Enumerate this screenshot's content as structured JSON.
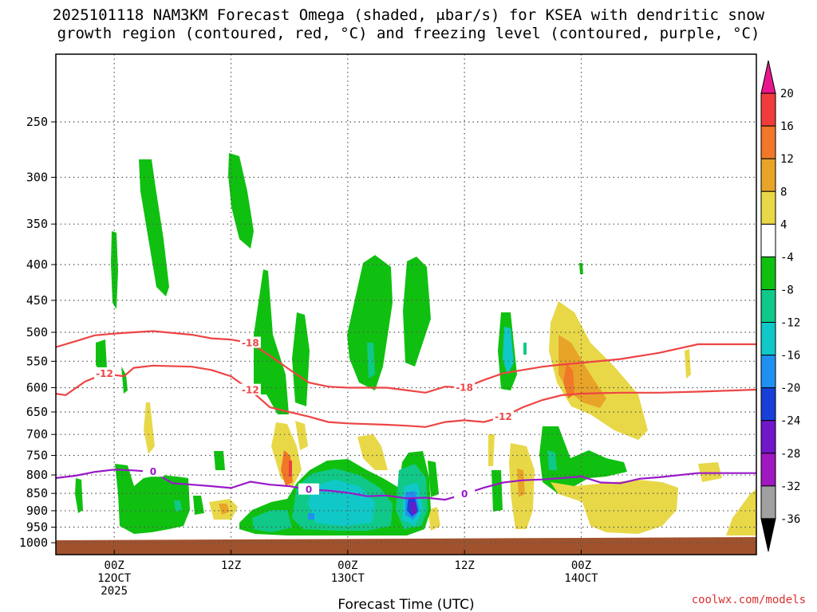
{
  "title": {
    "line1": "2025101118 NAM3KM Forecast Omega (shaded, μbar/s) for KSEA with dendritic snow",
    "line2": "growth region (contoured, red, °C) and freezing level (contoured, purple, °C)"
  },
  "credit": "coolwx.com/models",
  "chart_data": {
    "type": "time-height cross-section",
    "title": "2025101118 NAM3KM Forecast Omega (shaded, μbar/s) for KSEA with dendritic snow growth region (contoured, red, °C) and freezing level (contoured, purple, °C)",
    "xlabel": "Forecast Time (UTC)",
    "ylabel": "",
    "x_range": [
      "2025-10-11T18Z",
      "2025-10-14T18Z"
    ],
    "y_axis": {
      "units": "hPa",
      "ticks": [
        250,
        300,
        350,
        400,
        450,
        500,
        550,
        600,
        650,
        700,
        750,
        800,
        850,
        900,
        950,
        1000
      ],
      "scale": "log-pressure",
      "ylim": [
        1040,
        200
      ]
    },
    "x_ticks": [
      {
        "time": "2025-10-12T00Z",
        "label1": "00Z",
        "label2": "12OCT",
        "label3": "2025"
      },
      {
        "time": "2025-10-12T12Z",
        "label1": "12Z",
        "label2": "",
        "label3": ""
      },
      {
        "time": "2025-10-13T00Z",
        "label1": "00Z",
        "label2": "13OCT",
        "label3": ""
      },
      {
        "time": "2025-10-13T12Z",
        "label1": "12Z",
        "label2": "",
        "label3": ""
      },
      {
        "time": "2025-10-14T00Z",
        "label1": "00Z",
        "label2": "14OCT",
        "label3": ""
      }
    ],
    "grid": true,
    "colorbar": {
      "labels": [
        "20",
        "16",
        "12",
        "8",
        "4",
        "-4",
        "-8",
        "-12",
        "-16",
        "-20",
        "-24",
        "-28",
        "-32",
        "-36"
      ],
      "colors": [
        "#e8168c",
        "#f03c3c",
        "#f07828",
        "#e8a428",
        "#e8d848",
        "#ffffff",
        "#10c010",
        "#10c888",
        "#10c8c8",
        "#2090f0",
        "#1840d8",
        "#7018c8",
        "#a018c0",
        "#a0a0a0",
        "#000000"
      ]
    },
    "contours": [
      {
        "name": "-18",
        "color": "#ee4444",
        "label": "-18",
        "points": [
          [
            "2025-10-11T18Z",
            525
          ],
          [
            "2025-10-11T20Z",
            515
          ],
          [
            "2025-10-11T22Z",
            505
          ],
          [
            "2025-10-12T00Z",
            502
          ],
          [
            "2025-10-12T02Z",
            500
          ],
          [
            "2025-10-12T04Z",
            498
          ],
          [
            "2025-10-12T08Z",
            504
          ],
          [
            "2025-10-12T10Z",
            510
          ],
          [
            "2025-10-12T12Z",
            512
          ],
          [
            "2025-10-12T14Z",
            518
          ],
          [
            "2025-10-12T16Z",
            540
          ],
          [
            "2025-10-12T18Z",
            565
          ],
          [
            "2025-10-12T20Z",
            590
          ],
          [
            "2025-10-12T22Z",
            598
          ],
          [
            "2025-10-13T00Z",
            600
          ],
          [
            "2025-10-13T04Z",
            600
          ],
          [
            "2025-10-13T06Z",
            605
          ],
          [
            "2025-10-13T08Z",
            610
          ],
          [
            "2025-10-13T10Z",
            598
          ],
          [
            "2025-10-13T12Z",
            600
          ],
          [
            "2025-10-13T14Z",
            585
          ],
          [
            "2025-10-13T16Z",
            572
          ],
          [
            "2025-10-13T18Z",
            566
          ],
          [
            "2025-10-13T20Z",
            560
          ],
          [
            "2025-10-13T22Z",
            556
          ],
          [
            "2025-10-14T00Z",
            553
          ],
          [
            "2025-10-14T04Z",
            546
          ],
          [
            "2025-10-14T08Z",
            535
          ],
          [
            "2025-10-14T12Z",
            520
          ],
          [
            "2025-10-14T18Z",
            520
          ]
        ]
      },
      {
        "name": "-12",
        "color": "#ee4444",
        "label": "-12",
        "points": [
          [
            "2025-10-11T18Z",
            612
          ],
          [
            "2025-10-11T19Z",
            615
          ],
          [
            "2025-10-11T21Z",
            588
          ],
          [
            "2025-10-11T23Z",
            573
          ],
          [
            "2025-10-12T01Z",
            578
          ],
          [
            "2025-10-12T02Z",
            562
          ],
          [
            "2025-10-12T04Z",
            558
          ],
          [
            "2025-10-12T08Z",
            560
          ],
          [
            "2025-10-12T10Z",
            566
          ],
          [
            "2025-10-12T12Z",
            578
          ],
          [
            "2025-10-12T14Z",
            605
          ],
          [
            "2025-10-12T16Z",
            640
          ],
          [
            "2025-10-12T18Z",
            650
          ],
          [
            "2025-10-12T20Z",
            660
          ],
          [
            "2025-10-12T22Z",
            672
          ],
          [
            "2025-10-13T00Z",
            675
          ],
          [
            "2025-10-13T04Z",
            678
          ],
          [
            "2025-10-13T06Z",
            680
          ],
          [
            "2025-10-13T08Z",
            683
          ],
          [
            "2025-10-13T10Z",
            672
          ],
          [
            "2025-10-13T12Z",
            668
          ],
          [
            "2025-10-13T14Z",
            672
          ],
          [
            "2025-10-13T16Z",
            660
          ],
          [
            "2025-10-13T18Z",
            640
          ],
          [
            "2025-10-13T20Z",
            625
          ],
          [
            "2025-10-13T22Z",
            615
          ],
          [
            "2025-10-14T00Z",
            612
          ],
          [
            "2025-10-14T04Z",
            610
          ],
          [
            "2025-10-14T08Z",
            610
          ],
          [
            "2025-10-14T12Z",
            608
          ],
          [
            "2025-10-14T18Z",
            604
          ]
        ]
      },
      {
        "name": "0",
        "color": "#9a18c8",
        "label": "0",
        "points": [
          [
            "2025-10-11T18Z",
            808
          ],
          [
            "2025-10-11T20Z",
            802
          ],
          [
            "2025-10-11T22Z",
            792
          ],
          [
            "2025-10-12T00Z",
            786
          ],
          [
            "2025-10-12T02Z",
            788
          ],
          [
            "2025-10-12T04Z",
            792
          ],
          [
            "2025-10-12T06Z",
            822
          ],
          [
            "2025-10-12T08Z",
            826
          ],
          [
            "2025-10-12T10Z",
            830
          ],
          [
            "2025-10-12T12Z",
            835
          ],
          [
            "2025-10-12T14Z",
            818
          ],
          [
            "2025-10-12T16Z",
            826
          ],
          [
            "2025-10-12T18Z",
            830
          ],
          [
            "2025-10-12T20Z",
            840
          ],
          [
            "2025-10-12T22Z",
            842
          ],
          [
            "2025-10-13T00Z",
            848
          ],
          [
            "2025-10-13T02Z",
            858
          ],
          [
            "2025-10-13T04Z",
            856
          ],
          [
            "2025-10-13T06Z",
            864
          ],
          [
            "2025-10-13T08Z",
            862
          ],
          [
            "2025-10-13T10Z",
            868
          ],
          [
            "2025-10-13T12Z",
            852
          ],
          [
            "2025-10-13T14Z",
            834
          ],
          [
            "2025-10-13T16Z",
            820
          ],
          [
            "2025-10-13T18Z",
            814
          ],
          [
            "2025-10-13T20Z",
            812
          ],
          [
            "2025-10-13T22Z",
            808
          ],
          [
            "2025-10-14T00Z",
            804
          ],
          [
            "2025-10-14T02Z",
            820
          ],
          [
            "2025-10-14T04Z",
            822
          ],
          [
            "2025-10-14T06Z",
            810
          ],
          [
            "2025-10-14T08Z",
            806
          ],
          [
            "2025-10-14T12Z",
            795
          ],
          [
            "2025-10-14T18Z",
            795
          ]
        ]
      }
    ]
  }
}
